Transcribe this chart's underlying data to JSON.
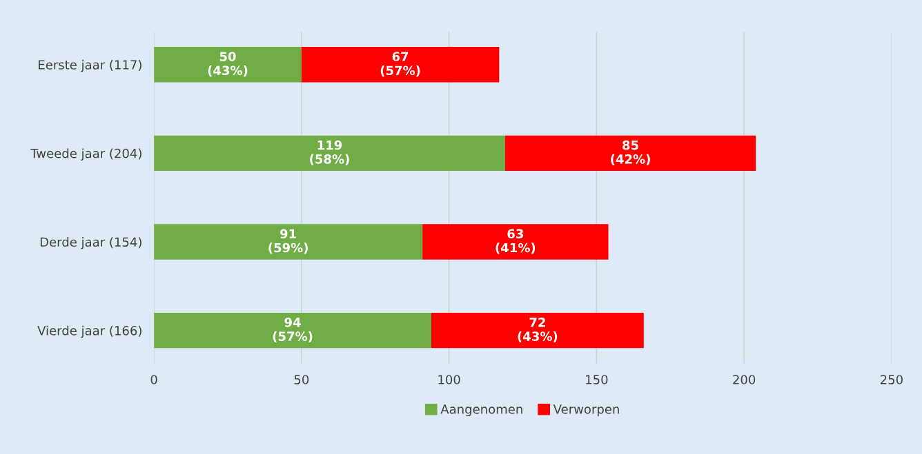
{
  "chart_data": {
    "type": "bar",
    "orientation": "horizontal",
    "stacked": true,
    "categories": [
      "Eerste jaar (117)",
      "Tweede jaar (204)",
      "Derde jaar (154)",
      "Vierde jaar (166)"
    ],
    "series": [
      {
        "name": "Aangenomen",
        "color": "#70ad47",
        "values": [
          50,
          119,
          91,
          94
        ],
        "value_labels": [
          "50\n(43%)",
          "119\n(58%)",
          "91\n(59%)",
          "94\n(57%)"
        ]
      },
      {
        "name": "Verworpen",
        "color": "#ff0000",
        "values": [
          67,
          85,
          63,
          72
        ],
        "value_labels": [
          "67\n(57%)",
          "85\n(42%)",
          "63\n(41%)",
          "72\n(43%)"
        ]
      }
    ],
    "xlim": [
      0,
      250
    ],
    "xticks": [
      0,
      50,
      100,
      150,
      200,
      250
    ],
    "grid": "x",
    "legend": "bottom"
  }
}
